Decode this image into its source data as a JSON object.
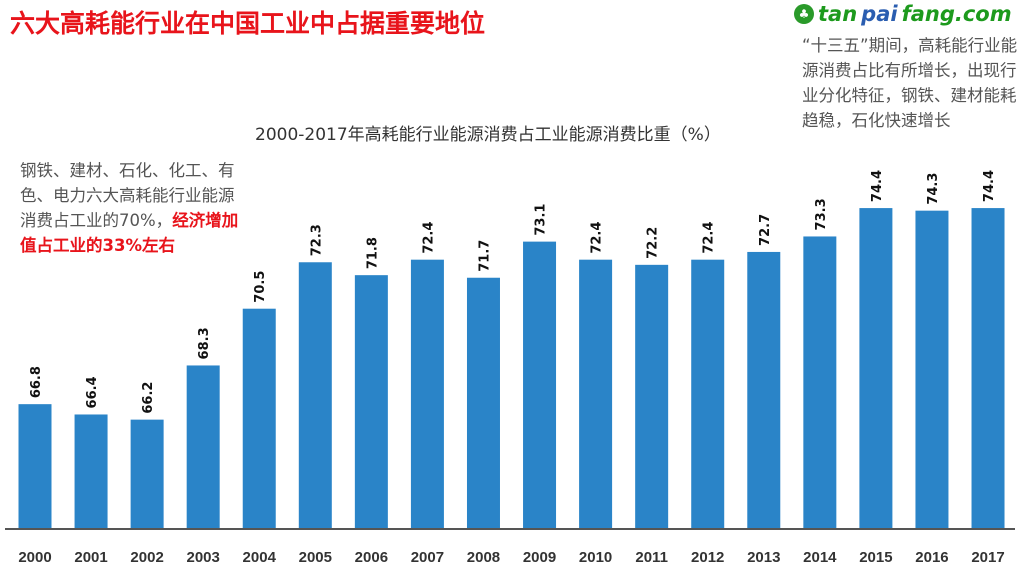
{
  "slide_title": "六大高耗能行业在中国工业中占据重要地位",
  "left_note": {
    "text": "钢铁、建材、石化、化工、有色、电力六大高耗能行业能源消费占工业的70%，",
    "highlight": "经济增加值占工业的33%左右"
  },
  "right_note": "“十三五”期间，高耗能行业能源消费占比有所增长，出现行业分化特征，钢铁、建材能耗趋稳，石化快速增长",
  "watermark": {
    "part1": "tan",
    "part2": "pai",
    "part3": "fang.com"
  },
  "colors": {
    "bar": "#2a84c8",
    "title": "#e8141b"
  },
  "chart_data": {
    "type": "bar",
    "title": "2000-2017年高耗能行业能源消费占工业能源消费比重（%）",
    "categories": [
      "2000",
      "2001",
      "2002",
      "2003",
      "2004",
      "2005",
      "2006",
      "2007",
      "2008",
      "2009",
      "2010",
      "2011",
      "2012",
      "2013",
      "2014",
      "2015",
      "2016",
      "2017"
    ],
    "values": [
      66.8,
      66.4,
      66.2,
      68.3,
      70.5,
      72.3,
      71.8,
      72.4,
      71.7,
      73.1,
      72.4,
      72.2,
      72.4,
      72.7,
      73.3,
      74.4,
      74.3,
      74.4
    ],
    "labels": [
      "66.8",
      "66.4",
      "66.2",
      "68.3",
      "70.5",
      "72.3",
      "71.8",
      "72.4",
      "71.7",
      "73.1",
      "72.4",
      "72.2",
      "72.4",
      "72.7",
      "73.3",
      "74.4",
      "74.3",
      "74.4"
    ],
    "xlabel": "",
    "ylabel": "",
    "ylim": [
      62,
      76
    ],
    "grid": false
  }
}
